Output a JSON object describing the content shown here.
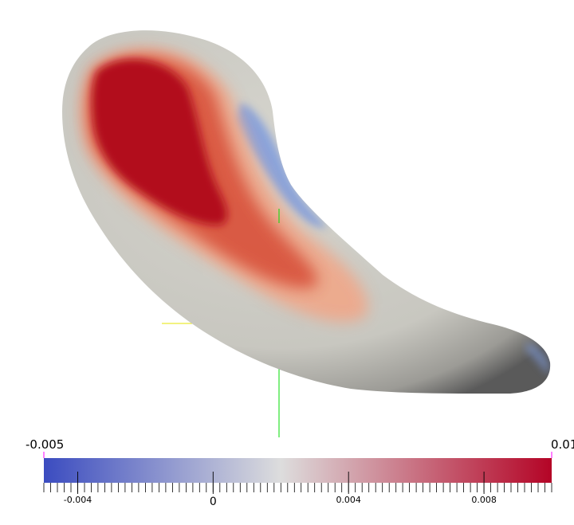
{
  "colorbar": {
    "min_label": "-0.005",
    "max_label": "0.01",
    "min_value": -0.005,
    "max_value": 0.01,
    "major_ticks": [
      {
        "value": -0.004,
        "label": "-0.004"
      },
      {
        "value": 0,
        "label": "0"
      },
      {
        "value": 0.004,
        "label": "0.004"
      },
      {
        "value": 0.008,
        "label": "0.008"
      }
    ],
    "minor_tick_step": 0.0002,
    "color_stops": [
      {
        "value": -0.005,
        "color": "#3b4cc0"
      },
      {
        "value": 0.002,
        "color": "#dddddd"
      },
      {
        "value": 0.01,
        "color": "#b40426"
      }
    ]
  },
  "axes_colors": {
    "x_axis": "#e6e600",
    "y_axis": "#00dd00"
  },
  "surface_colors": {
    "neutral": "#d0cfc8",
    "shadow": "#5c5c5c",
    "warm_core": "#b20f1f",
    "warm_mid": "#d9573f",
    "warm_light": "#eea98c",
    "cool": "#7f9bdc"
  }
}
